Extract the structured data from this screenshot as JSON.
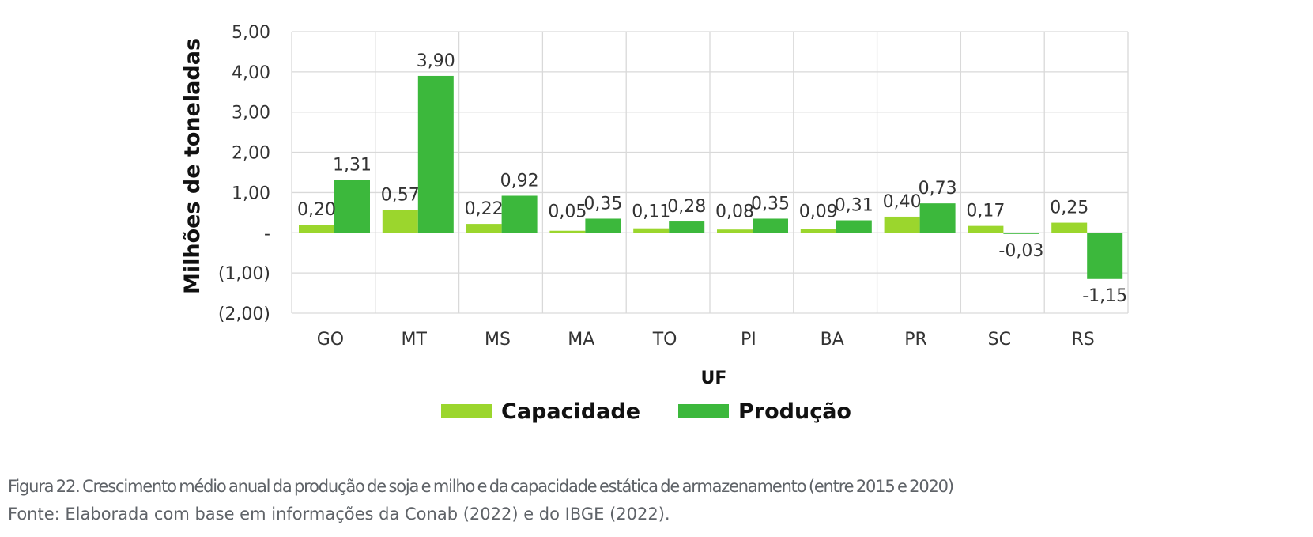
{
  "chart_data": {
    "type": "bar",
    "categories": [
      "GO",
      "MT",
      "MS",
      "MA",
      "TO",
      "PI",
      "BA",
      "PR",
      "SC",
      "RS"
    ],
    "series": [
      {
        "name": "Capacidade",
        "values": [
          0.2,
          0.57,
          0.22,
          0.05,
          0.11,
          0.08,
          0.09,
          0.4,
          0.17,
          0.25
        ],
        "labels": [
          "0,20",
          "0,57",
          "0,22",
          "0,05",
          "0,11",
          "0,08",
          "0,09",
          "0,40",
          "0,17",
          "0,25"
        ],
        "color": "#9bd62d"
      },
      {
        "name": "Produção",
        "values": [
          1.31,
          3.9,
          0.92,
          0.35,
          0.28,
          0.35,
          0.31,
          0.73,
          -0.03,
          -1.15
        ],
        "labels": [
          "1,31",
          "3,90",
          "0,92",
          "0,35",
          "0,28",
          "0,35",
          "0,31",
          "0,73",
          "-0,03",
          "-1,15"
        ],
        "color": "#3cb83c"
      }
    ],
    "xlabel": "UF",
    "ylabel": "Milhões de toneladas",
    "ylim": [
      -2,
      5
    ],
    "yticks": [
      5,
      4,
      3,
      2,
      1,
      0,
      -1,
      -2
    ],
    "ytick_labels": [
      "5,00",
      "4,00",
      "3,00",
      "2,00",
      "1,00",
      "-",
      "(1,00)",
      "(2,00)"
    ],
    "grid": true,
    "legend_position": "bottom"
  },
  "caption": {
    "title": "Figura 22. Crescimento médio anual da produção de soja e milho e da capacidade estática de armazenamento (entre 2015 e 2020)",
    "source": "Fonte: Elaborada com base em informações da Conab (2022) e do IBGE (2022)."
  }
}
